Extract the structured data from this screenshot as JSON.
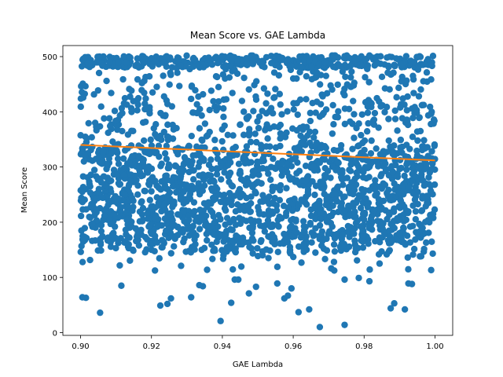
{
  "chart_data": {
    "type": "scatter",
    "title": "Mean Score vs. GAE Lambda",
    "xlabel": "GAE Lambda",
    "ylabel": "Mean Score",
    "xlim": [
      0.895,
      1.005
    ],
    "ylim": [
      -5,
      520
    ],
    "xticks": [
      "0.90",
      "0.92",
      "0.94",
      "0.96",
      "0.98",
      "1.00"
    ],
    "yticks": [
      "0",
      "100",
      "200",
      "300",
      "400",
      "500"
    ],
    "grid": false,
    "legend": "none",
    "colors": {
      "points": "#1f77b4",
      "trend": "#ff7f0e"
    },
    "series": [
      {
        "role": "points",
        "points": [
          [
            0.9005,
            64
          ],
          [
            0.9015,
            63
          ],
          [
            0.9055,
            36
          ],
          [
            0.9115,
            85
          ],
          [
            0.9225,
            49
          ],
          [
            0.9245,
            52
          ],
          [
            0.9255,
            62
          ],
          [
            0.9312,
            64
          ],
          [
            0.9335,
            86
          ],
          [
            0.9345,
            84
          ],
          [
            0.9395,
            21
          ],
          [
            0.9425,
            54
          ],
          [
            0.9435,
            96
          ],
          [
            0.9445,
            96
          ],
          [
            0.9475,
            71
          ],
          [
            0.9495,
            83
          ],
          [
            0.9555,
            89
          ],
          [
            0.9575,
            62
          ],
          [
            0.9585,
            67
          ],
          [
            0.9595,
            80
          ],
          [
            0.9615,
            37
          ],
          [
            0.9645,
            42
          ],
          [
            0.9675,
            10
          ],
          [
            0.9715,
            128
          ],
          [
            0.9745,
            96
          ],
          [
            0.9745,
            14
          ],
          [
            0.9785,
            99
          ],
          [
            0.9815,
            93
          ],
          [
            0.9875,
            44
          ],
          [
            0.9885,
            53
          ],
          [
            0.9915,
            42
          ],
          [
            0.9925,
            89
          ],
          [
            0.9935,
            88
          ]
        ]
      },
      {
        "role": "trend",
        "x": [
          0.9,
          1.0
        ],
        "y": [
          340,
          312
        ]
      }
    ]
  }
}
